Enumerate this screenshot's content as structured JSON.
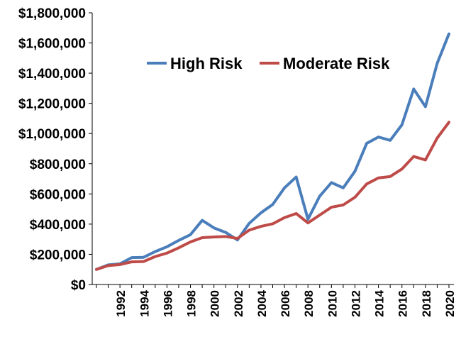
{
  "chart_data": {
    "type": "line",
    "title": "",
    "xlabel": "",
    "ylabel": "",
    "x": [
      1990,
      1991,
      1992,
      1993,
      1994,
      1995,
      1996,
      1997,
      1998,
      1999,
      2000,
      2001,
      2002,
      2003,
      2004,
      2005,
      2006,
      2007,
      2008,
      2009,
      2010,
      2011,
      2012,
      2013,
      2014,
      2015,
      2016,
      2017,
      2018,
      2019,
      2020
    ],
    "x_tick_labels": [
      "1992",
      "1994",
      "1996",
      "1998",
      "2000",
      "2002",
      "2004",
      "2006",
      "2008",
      "2010",
      "2012",
      "2014",
      "2016",
      "2018",
      "2020"
    ],
    "ylim": [
      0,
      1800000
    ],
    "y_tick_labels": [
      "$0",
      "$200,000",
      "$400,000",
      "$600,000",
      "$800,000",
      "$1,000,000",
      "$1,200,000",
      "$1,400,000",
      "$1,600,000",
      "$1,800,000"
    ],
    "grid": false,
    "legend_position": "top-center",
    "series": [
      {
        "name": "High Risk",
        "color": "#4a7ebb",
        "values": [
          100000,
          130000,
          137000,
          178000,
          180000,
          218000,
          250000,
          292000,
          330000,
          425000,
          375000,
          345000,
          295000,
          405000,
          475000,
          530000,
          640000,
          712000,
          432000,
          585000,
          675000,
          640000,
          750000,
          935000,
          977000,
          955000,
          1058000,
          1295000,
          1178000,
          1465000,
          1660000
        ]
      },
      {
        "name": "Moderate Risk",
        "color": "#be4b48",
        "values": [
          100000,
          125000,
          132000,
          150000,
          152000,
          185000,
          208000,
          243000,
          282000,
          310000,
          315000,
          318000,
          305000,
          360000,
          385000,
          402000,
          443000,
          470000,
          408000,
          460000,
          512000,
          527000,
          578000,
          666000,
          706000,
          715000,
          765000,
          848000,
          825000,
          970000,
          1075000
        ]
      }
    ]
  },
  "colors": {
    "axis": "#000000"
  }
}
